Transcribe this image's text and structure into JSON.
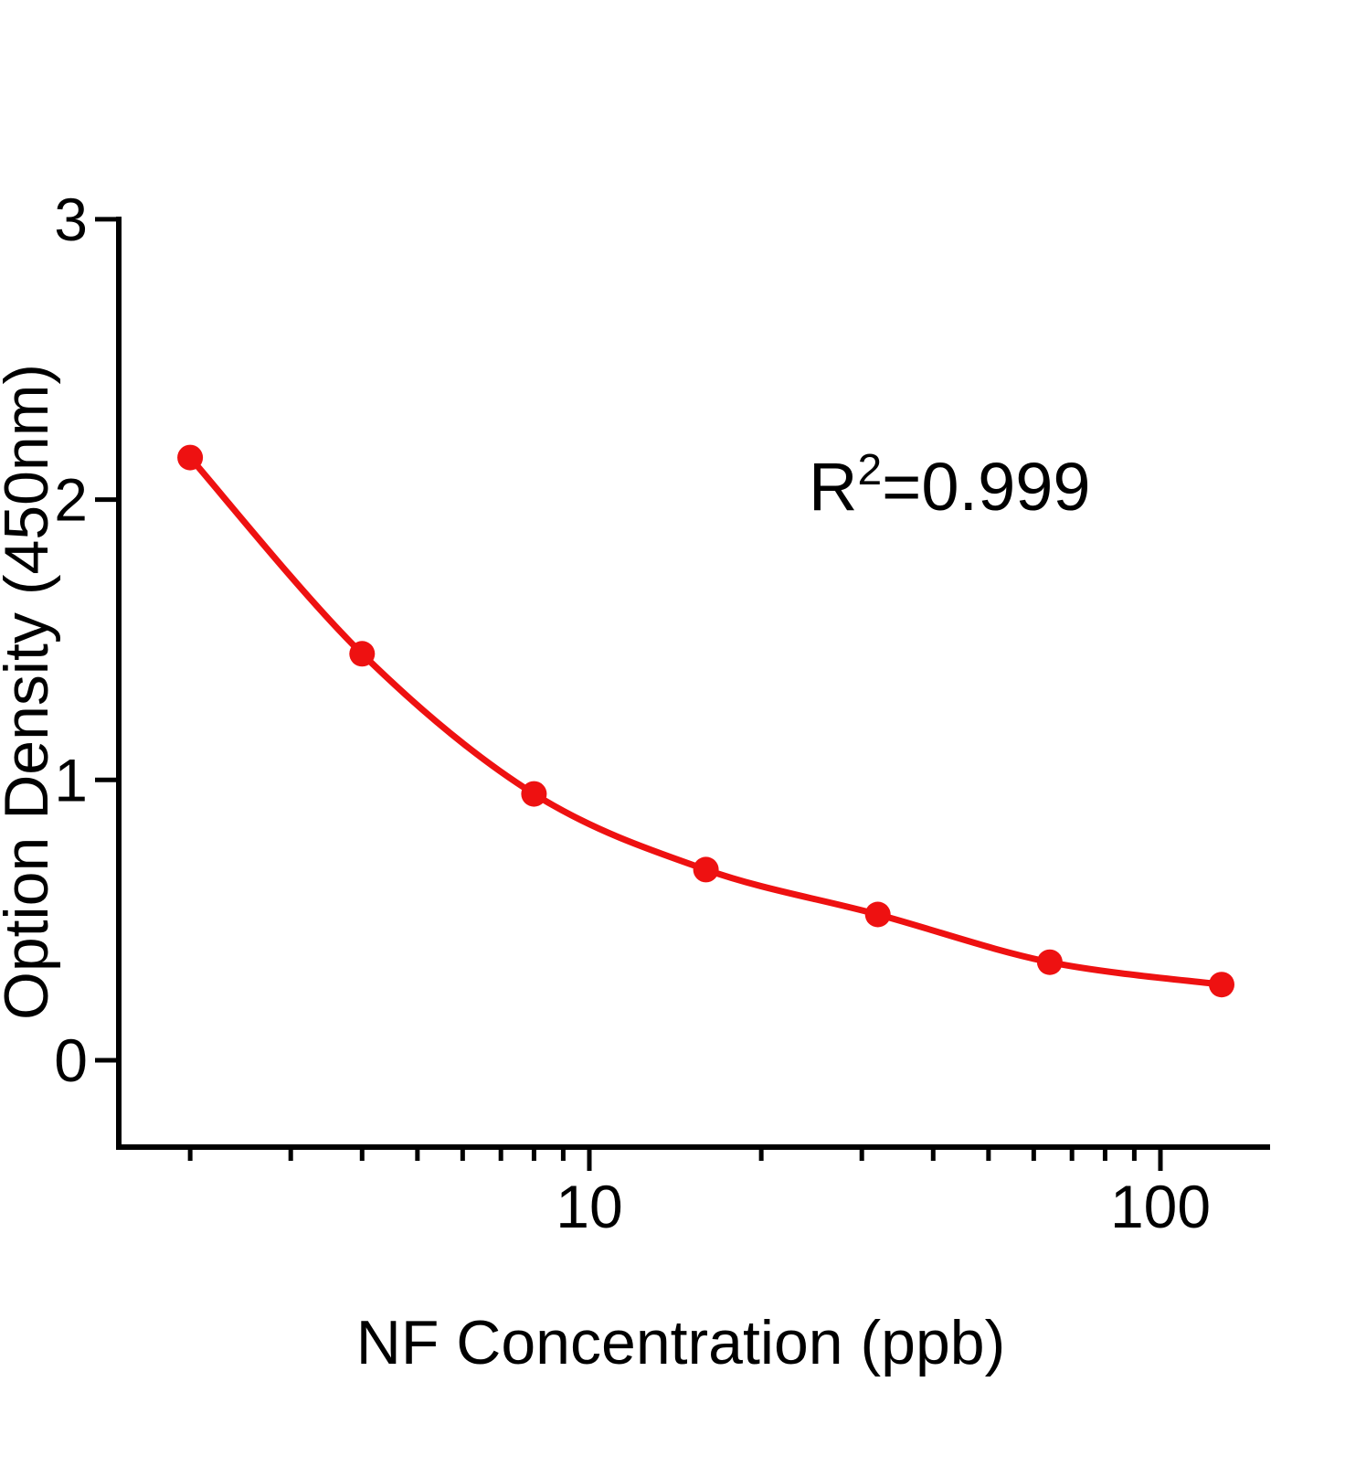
{
  "page": {
    "background": "#ffffff"
  },
  "chart_data": {
    "type": "scatter",
    "title": "",
    "xlabel": "NF Concentration (ppb)",
    "ylabel": "Option Density (450nm)",
    "annotation": "R²=0.999",
    "annotation_parts": {
      "base": "R",
      "sup": "2",
      "rest": "=0.999"
    },
    "x_scale": "log10",
    "x": [
      2,
      4,
      8,
      16,
      32,
      64,
      128
    ],
    "y": [
      2.15,
      1.45,
      0.95,
      0.68,
      0.52,
      0.35,
      0.27
    ],
    "fit_curve": true,
    "xticks": [
      10,
      100
    ],
    "xtick_labels": [
      "10",
      "100"
    ],
    "x_minor_ticks": [
      2,
      3,
      4,
      5,
      6,
      7,
      8,
      9,
      20,
      30,
      40,
      50,
      60,
      70,
      80,
      90
    ],
    "yticks": [
      0,
      1,
      2,
      3
    ],
    "ytick_labels": [
      "0",
      "1",
      "2",
      "3"
    ],
    "xlim": [
      1.5,
      156
    ],
    "ylim": [
      -0.31,
      3
    ],
    "grid": false,
    "legend": "none",
    "colors": {
      "points": "#ee1111",
      "curve": "#ee1111",
      "axis": "#000000",
      "text": "#000000"
    },
    "marker_radius_px": 14
  }
}
